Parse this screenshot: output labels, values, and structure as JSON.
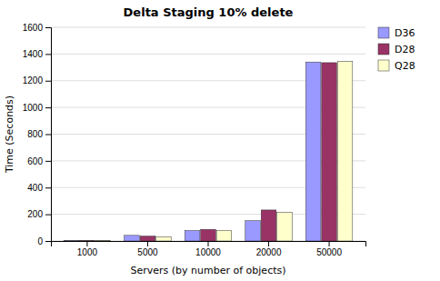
{
  "chart_data": {
    "type": "bar",
    "title": "Delta Staging 10% delete",
    "xlabel": "Servers (by number of objects)",
    "ylabel": "Time (Seconds)",
    "categories": [
      "1000",
      "5000",
      "10000",
      "20000",
      "50000"
    ],
    "series": [
      {
        "name": "D36",
        "color": "#9999FF",
        "values": [
          5,
          42,
          78,
          152,
          1340
        ]
      },
      {
        "name": "D28",
        "color": "#993366",
        "values": [
          5,
          36,
          87,
          232,
          1335
        ]
      },
      {
        "name": "Q28",
        "color": "#FFFFCC",
        "values": [
          5,
          32,
          78,
          215,
          1345
        ]
      }
    ],
    "ylim": [
      0,
      1600
    ],
    "yticks": [
      0,
      200,
      400,
      600,
      800,
      1000,
      1200,
      1400,
      1600
    ],
    "grid": true,
    "legend": "upper right"
  }
}
